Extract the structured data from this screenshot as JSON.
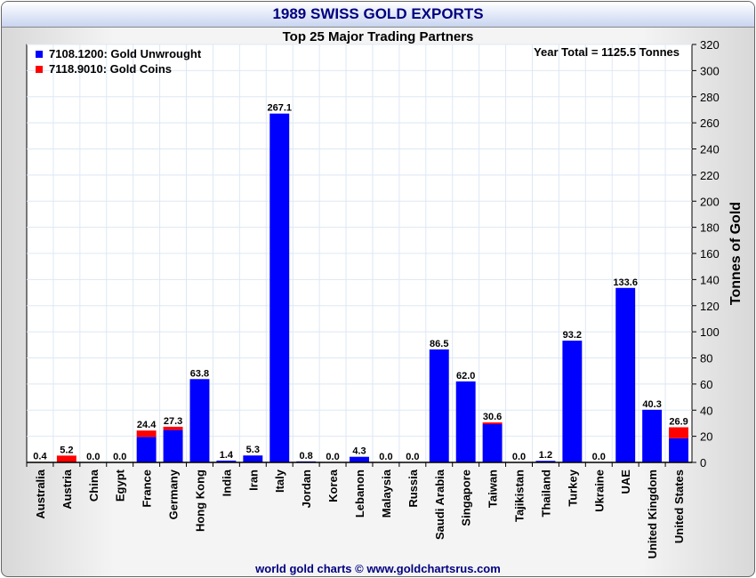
{
  "title": "1989 SWISS GOLD EXPORTS",
  "footer": "world gold charts © www.goldchartsrus.com",
  "chart_data": {
    "type": "bar",
    "stacked": true,
    "title": "Top 25 Major Trading Partners",
    "annotation": "Year Total = 1125.5 Tonnes",
    "ylabel": "Tonnes of Gold",
    "xlabel": "",
    "ylim": [
      0,
      320
    ],
    "yticks": [
      0,
      20,
      40,
      60,
      80,
      100,
      120,
      140,
      160,
      180,
      200,
      220,
      240,
      260,
      280,
      300,
      320
    ],
    "grid": true,
    "legend_placement": "top-left",
    "categories": [
      "Australia",
      "Austria",
      "China",
      "Egypt",
      "France",
      "Germany",
      "Hong Kong",
      "India",
      "Iran",
      "Italy",
      "Jordan",
      "Korea",
      "Lebanon",
      "Malaysia",
      "Russia",
      "Saudi Arabia",
      "Singapore",
      "Taiwan",
      "Tajikistan",
      "Thailand",
      "Turkey",
      "Ukraine",
      "UAE",
      "United Kingdom",
      "United States"
    ],
    "series": [
      {
        "name": "7108.1200: Gold Unwrought",
        "color": "#0000ff",
        "values": [
          0,
          0,
          0,
          0,
          19.5,
          24.8,
          63.8,
          1.4,
          5.3,
          267.1,
          0.8,
          0,
          4.3,
          0,
          0,
          86.5,
          62.0,
          29.3,
          0,
          1.2,
          93.2,
          0,
          133.6,
          40.3,
          18.5
        ]
      },
      {
        "name": "7118.9010: Gold Coins",
        "color": "#ff0000",
        "values": [
          0.4,
          5.2,
          0,
          0,
          4.9,
          2.5,
          0,
          0,
          0,
          0,
          0,
          0,
          0,
          0,
          0,
          0,
          0,
          1.3,
          0,
          0,
          0,
          0,
          0,
          0,
          8.4
        ]
      }
    ],
    "totals": [
      "0.4",
      "5.2",
      "0.0",
      "0.0",
      "24.4",
      "27.3",
      "63.8",
      "1.4",
      "5.3",
      "267.1",
      "0.8",
      "0.0",
      "4.3",
      "0.0",
      "0.0",
      "86.5",
      "62.0",
      "30.6",
      "0.0",
      "1.2",
      "93.2",
      "0.0",
      "133.6",
      "40.3",
      "26.9"
    ]
  }
}
